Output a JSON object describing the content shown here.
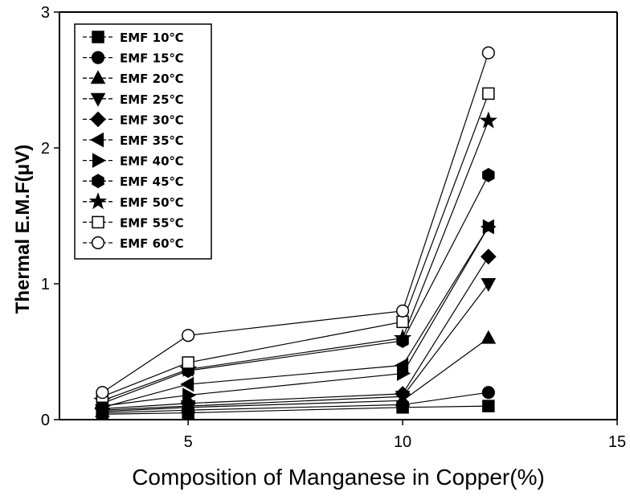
{
  "chart_data": {
    "type": "line",
    "title": "",
    "xlabel": "Composition of Manganese in Copper(%)",
    "ylabel": "Thermal E.M.F(μV)",
    "xlim": [
      2,
      15
    ],
    "ylim": [
      0,
      3
    ],
    "xticks": [
      5,
      10,
      15
    ],
    "yticks": [
      0,
      1,
      2,
      3
    ],
    "grid": false,
    "legend_position": "top-left",
    "x": [
      3,
      5,
      10,
      12
    ],
    "series": [
      {
        "name": "EMF  10℃",
        "marker": "square-filled",
        "color": "#000000",
        "values": [
          0.04,
          0.05,
          0.09,
          0.1
        ]
      },
      {
        "name": "EMF  15℃",
        "marker": "circle-filled",
        "color": "#000000",
        "values": [
          0.05,
          0.07,
          0.11,
          0.2
        ]
      },
      {
        "name": "EMF  20℃",
        "marker": "triangle-up",
        "color": "#000000",
        "values": [
          0.06,
          0.09,
          0.14,
          0.6
        ]
      },
      {
        "name": "EMF  25℃",
        "marker": "triangle-down",
        "color": "#000000",
        "values": [
          0.07,
          0.1,
          0.17,
          1.0
        ]
      },
      {
        "name": "EMF  30℃",
        "marker": "diamond-filled",
        "color": "#000000",
        "values": [
          0.08,
          0.12,
          0.19,
          1.2
        ]
      },
      {
        "name": "EMF  35℃",
        "marker": "triangle-left",
        "color": "#000000",
        "values": [
          0.09,
          0.26,
          0.4,
          1.42
        ]
      },
      {
        "name": "EMF  40℃",
        "marker": "triangle-right",
        "color": "#000000",
        "values": [
          0.1,
          0.18,
          0.34,
          1.42
        ]
      },
      {
        "name": "EMF  45℃",
        "marker": "hexagon-filled",
        "color": "#000000",
        "values": [
          0.12,
          0.36,
          0.58,
          1.8
        ]
      },
      {
        "name": "EMF  50℃",
        "marker": "star-filled",
        "color": "#000000",
        "values": [
          0.14,
          0.37,
          0.6,
          2.2
        ]
      },
      {
        "name": "EMF  55℃",
        "marker": "square-open",
        "color": "#000000",
        "values": [
          0.17,
          0.42,
          0.72,
          2.4
        ]
      },
      {
        "name": "EMF  60℃",
        "marker": "circle-open",
        "color": "#000000",
        "values": [
          0.2,
          0.62,
          0.8,
          2.7
        ]
      }
    ]
  }
}
